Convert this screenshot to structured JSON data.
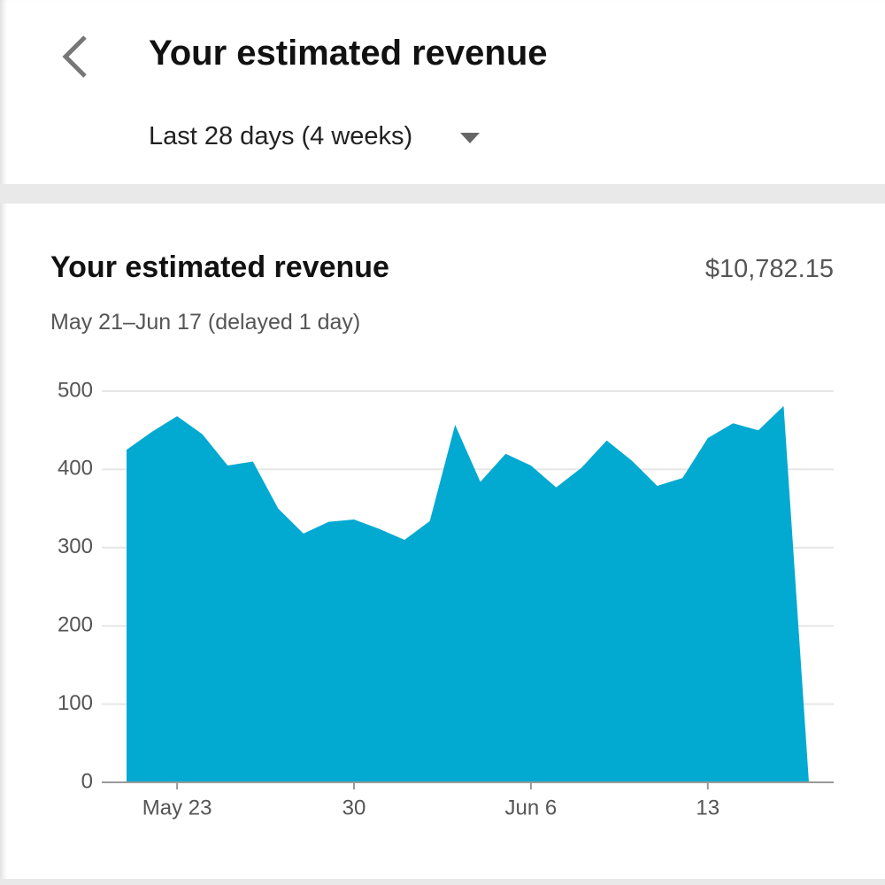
{
  "header": {
    "title": "Your estimated revenue",
    "range": "Last 28 days (4 weeks)"
  },
  "card": {
    "title": "Your estimated revenue",
    "total": "$10,782.15",
    "subtitle": "May 21–Jun 17 (delayed 1 day)"
  },
  "chart_data": {
    "type": "area",
    "color": "#02a9d1",
    "categories": [
      null,
      null,
      "May 23",
      null,
      null,
      null,
      null,
      null,
      null,
      "30",
      null,
      null,
      null,
      null,
      null,
      null,
      "Jun 6",
      null,
      null,
      null,
      null,
      null,
      null,
      "13",
      null,
      null,
      null,
      null
    ],
    "values": [
      425,
      448,
      468,
      445,
      405,
      410,
      350,
      318,
      333,
      336,
      324,
      310,
      334,
      457,
      384,
      420,
      405,
      377,
      402,
      437,
      411,
      379,
      389,
      440,
      459,
      450,
      481,
      0
    ],
    "ylim": [
      0,
      500
    ],
    "yticks": [
      0,
      100,
      200,
      300,
      400,
      500
    ],
    "grid": true
  }
}
